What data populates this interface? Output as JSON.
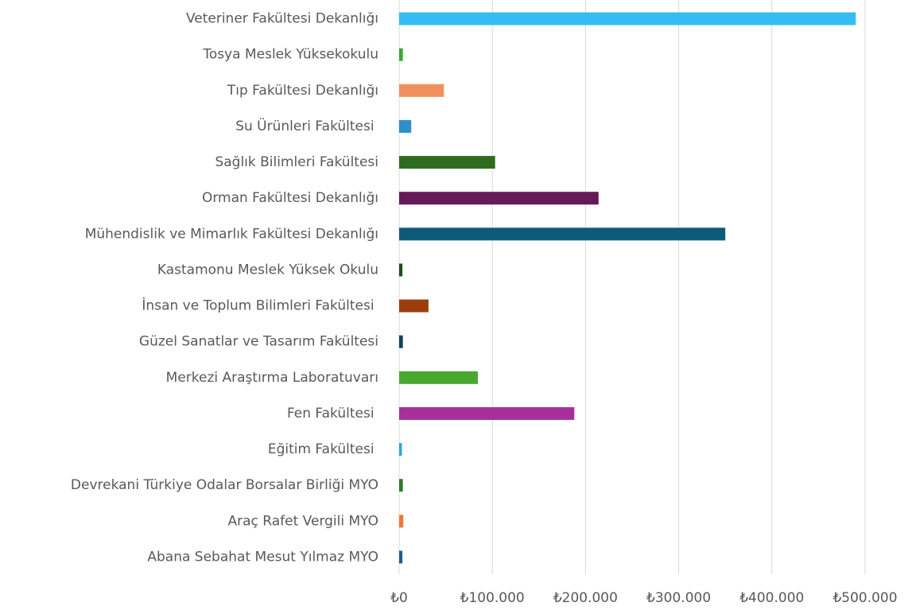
{
  "chart_data": {
    "type": "bar",
    "orientation": "horizontal",
    "categories": [
      "Veteriner Fakültesi Dekanlığı",
      "Tosya Meslek Yüksekokulu",
      "Tıp Fakültesi Dekanlığı",
      "Su Ürünleri Fakültesi ",
      "Sağlık Bilimleri Fakültesi",
      "Orman Fakültesi Dekanlığı",
      "Mühendislik ve Mimarlık Fakültesi Dekanlığı",
      "Kastamonu Meslek Yüksek Okulu",
      "İnsan ve Toplum Bilimleri Fakültesi ",
      "Güzel Sanatlar ve Tasarım Fakültesi",
      "Merkezi Araştırma Laboratuvarı",
      "Fen Fakültesi ",
      "Eğitim Fakültesi ",
      "Devrekani Türkiye Odalar Borsalar Birliği MYO",
      "Araç Rafet Vergili MYO",
      "Abana Sebahat Mesut Yılmaz MYO"
    ],
    "values": [
      490000,
      4000,
      48000,
      13000,
      103000,
      214000,
      350000,
      3500,
      31500,
      4000,
      84500,
      188000,
      3000,
      4000,
      4500,
      3500
    ],
    "colors": [
      "#33bdf2",
      "#3aaa35",
      "#f0915c",
      "#2e8fcc",
      "#2f6b1f",
      "#661a5a",
      "#0d5b7a",
      "#1e4d1e",
      "#9c3d0e",
      "#14425c",
      "#4aa832",
      "#a8309a",
      "#2aa8dc",
      "#2f7a33",
      "#ee7a3a",
      "#1f5c8a"
    ],
    "xlim": [
      0,
      500000
    ],
    "xticks": [
      {
        "value": 0,
        "label": "₺0"
      },
      {
        "value": 100000,
        "label": "₺100.000"
      },
      {
        "value": 200000,
        "label": "₺200.000"
      },
      {
        "value": 300000,
        "label": "₺300.000"
      },
      {
        "value": 400000,
        "label": "₺400.000"
      },
      {
        "value": 500000,
        "label": "₺500.000"
      }
    ],
    "grid": true
  }
}
